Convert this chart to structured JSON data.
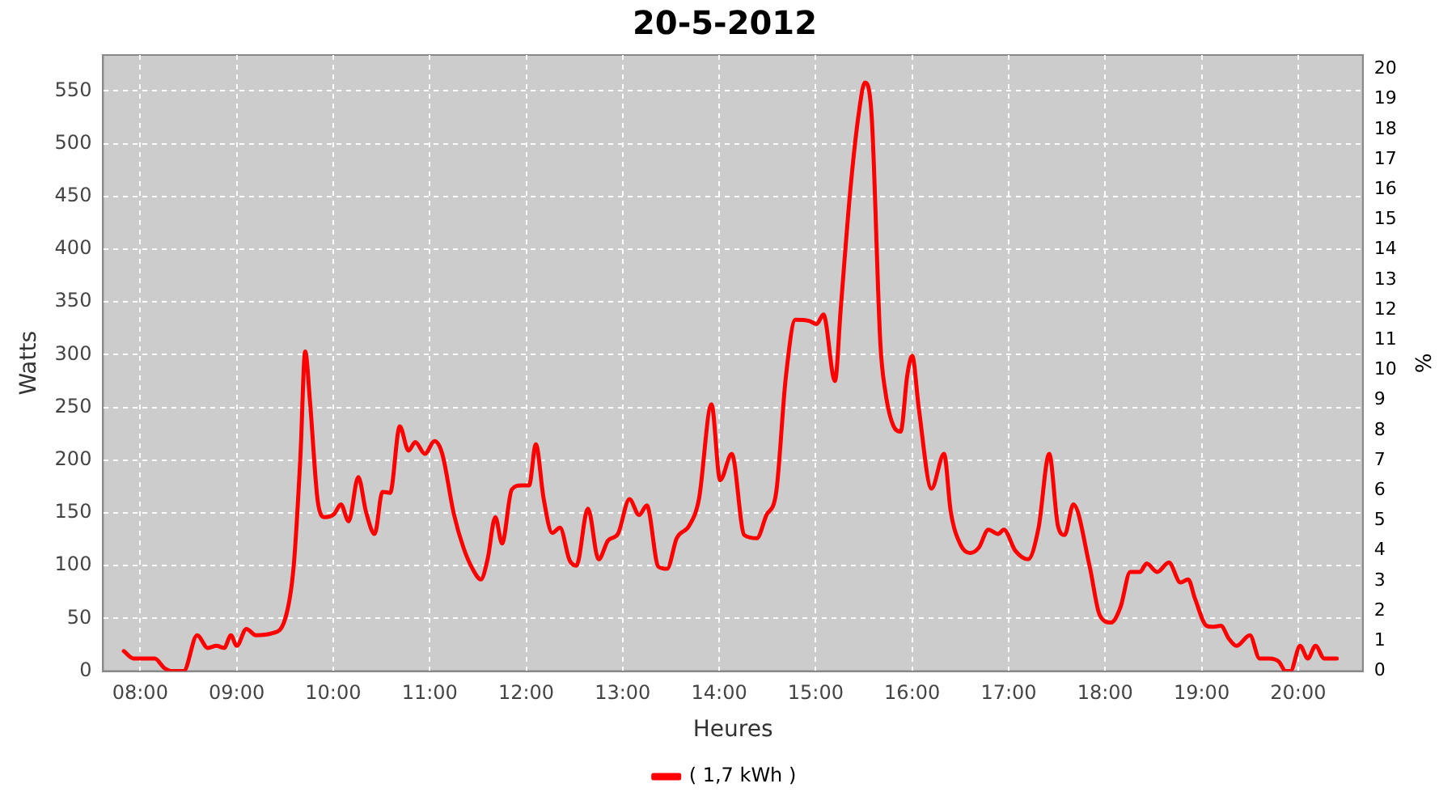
{
  "chart_data": {
    "type": "line",
    "title": "20-5-2012",
    "xlabel": "Heures",
    "ylabel": "Watts",
    "y2label": "%",
    "xlim": [
      7.615,
      20.67
    ],
    "xticks": [
      {
        "value": 8,
        "label": "08:00"
      },
      {
        "value": 9,
        "label": "09:00"
      },
      {
        "value": 10,
        "label": "10:00"
      },
      {
        "value": 11,
        "label": "11:00"
      },
      {
        "value": 12,
        "label": "12:00"
      },
      {
        "value": 13,
        "label": "13:00"
      },
      {
        "value": 14,
        "label": "14:00"
      },
      {
        "value": 15,
        "label": "15:00"
      },
      {
        "value": 16,
        "label": "16:00"
      },
      {
        "value": 17,
        "label": "17:00"
      },
      {
        "value": 18,
        "label": "18:00"
      },
      {
        "value": 19,
        "label": "19:00"
      },
      {
        "value": 20,
        "label": "20:00"
      }
    ],
    "ylim": [
      0,
      584
    ],
    "yticks": [
      0,
      50,
      100,
      150,
      200,
      250,
      300,
      350,
      400,
      450,
      500,
      550
    ],
    "y2lim": [
      0,
      20.47
    ],
    "y2ticks": [
      0,
      1,
      2,
      3,
      4,
      5,
      6,
      7,
      8,
      9,
      10,
      11,
      12,
      13,
      14,
      15,
      16,
      17,
      18,
      19,
      20
    ],
    "grid": true,
    "legend": "bottom",
    "marker": "none",
    "line_style": "solid",
    "series": [
      {
        "name": "( 1,7 kWh )",
        "color": "#ff0000",
        "x": [
          7.83,
          7.93,
          8.15,
          8.25,
          8.33,
          8.45,
          8.59,
          8.7,
          8.79,
          8.87,
          8.94,
          9.0,
          9.1,
          9.2,
          9.37,
          9.5,
          9.59,
          9.66,
          9.71,
          9.76,
          9.84,
          9.91,
          10.01,
          10.08,
          10.16,
          10.26,
          10.34,
          10.43,
          10.51,
          10.59,
          10.69,
          10.78,
          10.85,
          10.95,
          11.05,
          11.13,
          11.25,
          11.35,
          11.45,
          11.53,
          11.6,
          11.68,
          11.75,
          11.85,
          11.95,
          12.03,
          12.1,
          12.18,
          12.27,
          12.35,
          12.45,
          12.52,
          12.64,
          12.75,
          12.85,
          12.95,
          13.07,
          13.17,
          13.25,
          13.37,
          13.46,
          13.56,
          13.69,
          13.79,
          13.92,
          14.01,
          14.13,
          14.26,
          14.39,
          14.49,
          14.59,
          14.69,
          14.79,
          14.93,
          15.01,
          15.08,
          15.2,
          15.26,
          15.36,
          15.45,
          15.51,
          15.58,
          15.67,
          15.72,
          15.82,
          15.88,
          15.95,
          16.0,
          16.07,
          16.2,
          16.33,
          16.4,
          16.5,
          16.6,
          16.69,
          16.79,
          16.89,
          16.95,
          17.07,
          17.2,
          17.31,
          17.42,
          17.51,
          17.58,
          17.67,
          17.84,
          17.94,
          18.06,
          18.16,
          18.26,
          18.36,
          18.43,
          18.54,
          18.66,
          18.78,
          18.86,
          18.93,
          19.05,
          19.11,
          19.2,
          19.28,
          19.36,
          19.5,
          19.6,
          19.7,
          19.8,
          19.87,
          19.92,
          20.02,
          20.1,
          20.18,
          20.27,
          20.4
        ],
        "values": [
          19,
          12,
          12,
          3,
          0,
          0,
          34,
          22,
          24,
          22,
          34,
          24,
          40,
          34,
          36,
          49,
          99,
          203,
          303,
          255,
          161,
          146,
          149,
          158,
          142,
          184,
          151,
          130,
          170,
          169,
          232,
          209,
          217,
          206,
          218,
          206,
          149,
          117,
          96,
          87,
          106,
          146,
          121,
          172,
          176,
          176,
          215,
          164,
          131,
          136,
          105,
          100,
          154,
          106,
          124,
          130,
          163,
          148,
          157,
          99,
          97,
          126,
          138,
          163,
          253,
          181,
          206,
          129,
          126,
          148,
          169,
          278,
          333,
          332,
          329,
          338,
          275,
          344,
          457,
          531,
          558,
          526,
          311,
          266,
          230,
          227,
          281,
          299,
          248,
          173,
          206,
          151,
          120,
          112,
          117,
          134,
          130,
          134,
          114,
          106,
          136,
          206,
          138,
          129,
          158,
          99,
          54,
          46,
          61,
          94,
          94,
          102,
          94,
          103,
          84,
          87,
          69,
          43,
          42,
          43,
          31,
          24,
          34,
          12,
          12,
          9,
          0,
          0,
          24,
          12,
          24,
          12,
          12
        ]
      }
    ]
  }
}
